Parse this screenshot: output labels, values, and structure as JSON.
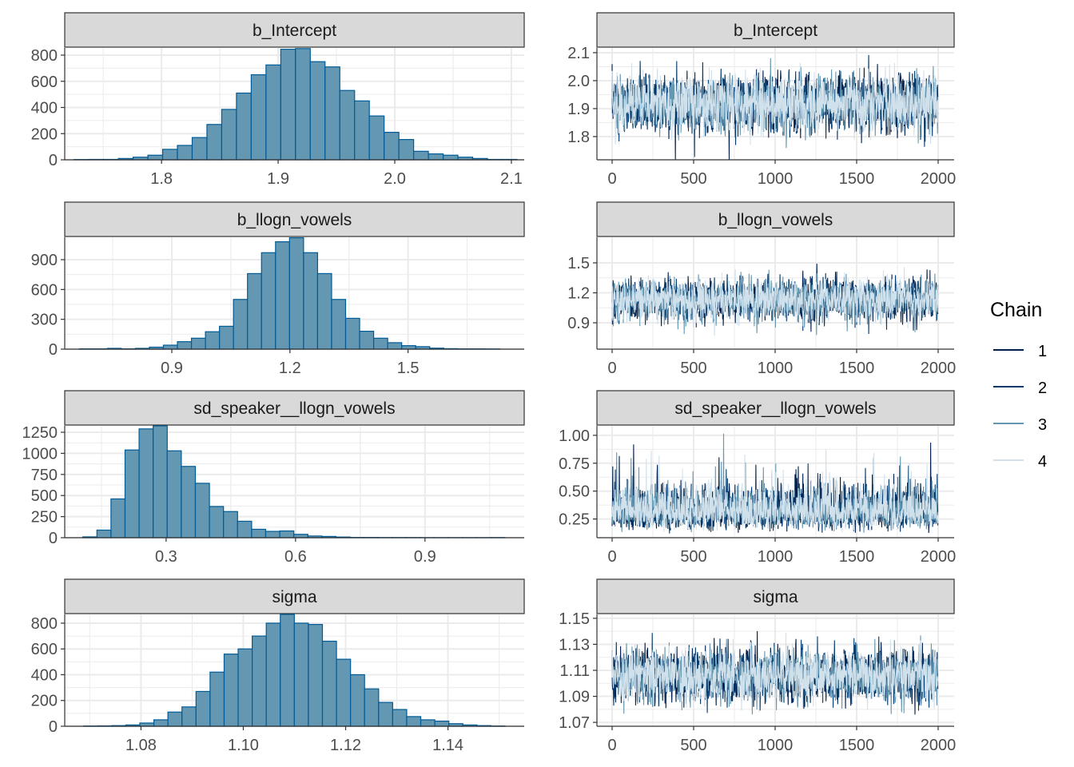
{
  "chart_data": {
    "type": "histogram+trace",
    "colors": {
      "hist_fill": "#6497b1",
      "hist_outline": "#005b96",
      "strip_bg": "#d9d9d9",
      "grid": "#ebebeb"
    },
    "legend": {
      "title": "Chain",
      "placement": "right",
      "entries": [
        {
          "label": "1",
          "color": "#011f4b"
        },
        {
          "label": "2",
          "color": "#03396c"
        },
        {
          "label": "3",
          "color": "#6497b1"
        },
        {
          "label": "4",
          "color": "#d1e1ec"
        }
      ]
    },
    "trace_x": {
      "range": [
        0,
        2000
      ],
      "ticks": [
        0,
        500,
        1000,
        1500,
        2000
      ],
      "tick_labels": [
        "0",
        "500",
        "1000",
        "1500",
        "2000"
      ]
    },
    "parameters": [
      {
        "name": "b_Intercept",
        "hist": {
          "bin_start": 1.725,
          "bin_width": 0.01266,
          "counts": [
            2,
            3,
            3,
            10,
            20,
            35,
            80,
            110,
            170,
            270,
            385,
            510,
            650,
            725,
            845,
            850,
            750,
            710,
            530,
            450,
            335,
            210,
            155,
            65,
            45,
            35,
            20,
            10,
            3,
            3
          ],
          "xlim": [
            1.717,
            2.111
          ],
          "xticks": [
            1.8,
            1.9,
            2.0,
            2.1
          ],
          "xtick_labels": [
            "1.8",
            "1.9",
            "2.0",
            "2.1"
          ],
          "ylim": [
            0,
            855
          ],
          "yticks": [
            0,
            200,
            400,
            600,
            800
          ],
          "ytick_labels": [
            "0",
            "200",
            "400",
            "600",
            "800"
          ]
        },
        "trace": {
          "mean": 1.92,
          "sd": 0.05,
          "ylim": [
            1.717,
            2.117
          ],
          "yticks": [
            1.8,
            1.9,
            2.0,
            2.1
          ],
          "ytick_labels": [
            "1.8",
            "1.9",
            "2.0",
            "2.1"
          ]
        }
      },
      {
        "name": "b_llogn_vowels",
        "hist": {
          "bin_start": 0.665,
          "bin_width": 0.0356,
          "counts": [
            3,
            3,
            8,
            3,
            8,
            20,
            40,
            75,
            110,
            175,
            230,
            500,
            760,
            970,
            1080,
            1120,
            970,
            760,
            500,
            310,
            180,
            110,
            65,
            35,
            25,
            10,
            5,
            3,
            3,
            2
          ],
          "xlim": [
            0.628,
            1.795
          ],
          "xticks": [
            0.9,
            1.2,
            1.5
          ],
          "xtick_labels": [
            "0.9",
            "1.2",
            "1.5"
          ],
          "ylim": [
            0,
            1125
          ],
          "yticks": [
            0,
            300,
            600,
            900
          ],
          "ytick_labels": [
            "0",
            "300",
            "600",
            "900"
          ]
        },
        "trace": {
          "mean": 1.13,
          "sd": 0.1,
          "ylim": [
            0.636,
            1.756
          ],
          "yticks": [
            0.9,
            1.2,
            1.5
          ],
          "ytick_labels": [
            "0.9",
            "1.2",
            "1.5"
          ]
        }
      },
      {
        "name": "sd_speaker__llogn_vowels",
        "hist": {
          "bin_start": 0.107,
          "bin_width": 0.0326,
          "counts": [
            10,
            90,
            460,
            1040,
            1290,
            1330,
            1030,
            845,
            645,
            370,
            310,
            195,
            100,
            75,
            80,
            40,
            20,
            15,
            8,
            3,
            3,
            2,
            2,
            2,
            1,
            1,
            1,
            1,
            1,
            2
          ],
          "xlim": [
            0.065,
            1.13
          ],
          "xticks": [
            0.3,
            0.6,
            0.9
          ],
          "xtick_labels": [
            "0.3",
            "0.6",
            "0.9"
          ],
          "ylim": [
            0,
            1326
          ],
          "yticks": [
            0,
            250,
            500,
            750,
            1000,
            1250
          ],
          "ytick_labels": [
            "0",
            "250",
            "500",
            "750",
            "1000",
            "1250"
          ]
        },
        "trace": {
          "mean": 0.32,
          "sd": 0.09,
          "ylim": [
            0.0825,
            1.085
          ],
          "yticks": [
            0.25,
            0.5,
            0.75,
            1.0
          ],
          "ytick_labels": [
            "0.25",
            "0.50",
            "0.75",
            "1.00"
          ]
        }
      },
      {
        "name": "sigma",
        "hist": {
          "bin_start": 1.0688,
          "bin_width": 0.002745,
          "counts": [
            2,
            3,
            5,
            10,
            25,
            50,
            110,
            150,
            270,
            420,
            560,
            600,
            700,
            800,
            870,
            800,
            790,
            660,
            520,
            400,
            290,
            185,
            130,
            75,
            50,
            40,
            20,
            10,
            5,
            2
          ],
          "xlim": [
            1.0651,
            1.1549
          ],
          "xticks": [
            1.08,
            1.1,
            1.12,
            1.14
          ],
          "xtick_labels": [
            "1.08",
            "1.10",
            "1.12",
            "1.14"
          ],
          "ylim": [
            0,
            868
          ],
          "yticks": [
            0,
            200,
            400,
            600,
            800
          ],
          "ytick_labels": [
            "0",
            "200",
            "400",
            "600",
            "800"
          ]
        },
        "trace": {
          "mean": 1.106,
          "sd": 0.01,
          "ylim": [
            1.067,
            1.153
          ],
          "yticks": [
            1.07,
            1.09,
            1.11,
            1.13,
            1.15
          ],
          "ytick_labels": [
            "1.07",
            "1.09",
            "1.11",
            "1.13",
            "1.15"
          ]
        }
      }
    ]
  }
}
